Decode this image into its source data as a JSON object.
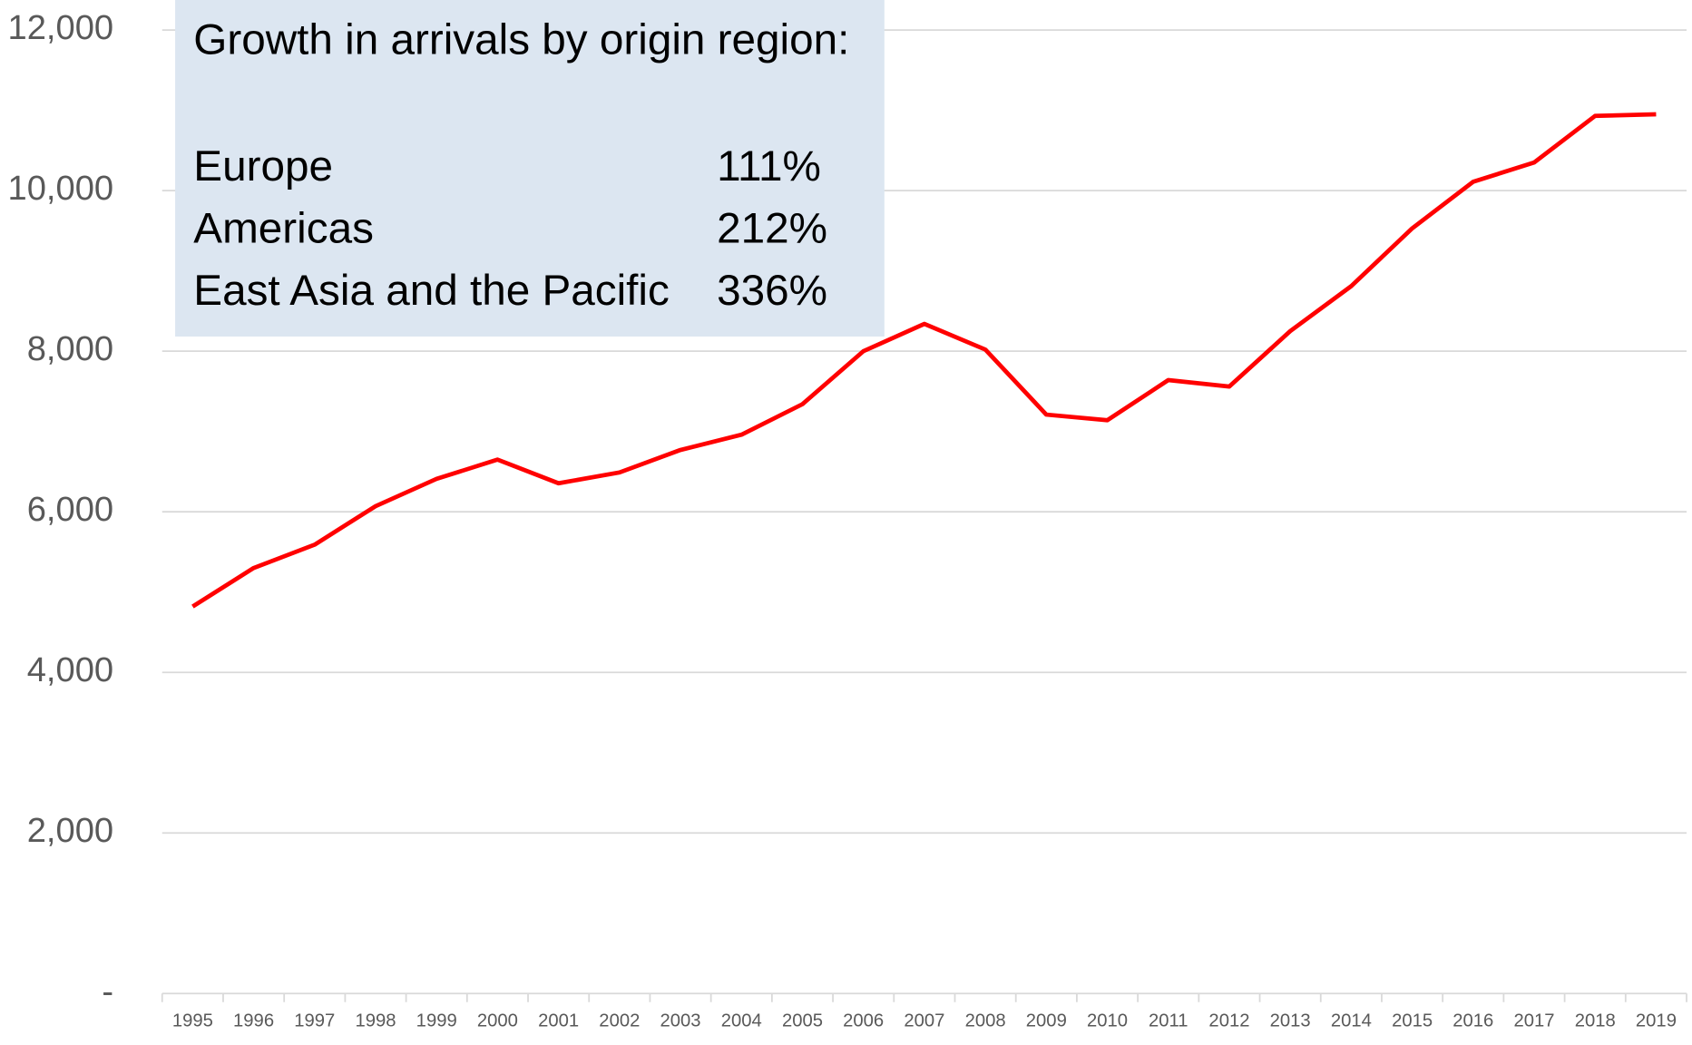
{
  "chart_data": {
    "type": "line",
    "categories": [
      "1995",
      "1996",
      "1997",
      "1998",
      "1999",
      "2000",
      "2001",
      "2002",
      "2003",
      "2004",
      "2005",
      "2006",
      "2007",
      "2008",
      "2009",
      "2010",
      "2011",
      "2012",
      "2013",
      "2014",
      "2015",
      "2016",
      "2017",
      "2018",
      "2019"
    ],
    "values": [
      4820,
      5300,
      5590,
      6070,
      6410,
      6650,
      6355,
      6490,
      6770,
      6960,
      7340,
      8000,
      8340,
      8020,
      7210,
      7140,
      7640,
      7560,
      8250,
      8810,
      9530,
      10110,
      10350,
      10930,
      10950
    ],
    "color": "#ff0000",
    "ylim": [
      0,
      12000
    ],
    "yticks": [
      {
        "value": 0,
        "label": "-"
      },
      {
        "value": 2000,
        "label": "2,000"
      },
      {
        "value": 4000,
        "label": "4,000"
      },
      {
        "value": 6000,
        "label": "6,000"
      },
      {
        "value": 8000,
        "label": "8,000"
      },
      {
        "value": 10000,
        "label": "10,000"
      },
      {
        "value": 12000,
        "label": "12,000"
      }
    ],
    "grid": true,
    "annotation": {
      "title": "Growth in arrivals by origin region:",
      "rows": [
        {
          "name": "Europe",
          "value": "111%"
        },
        {
          "name": "Americas",
          "value": "212%"
        },
        {
          "name": "East Asia and the Pacific",
          "value": "336%"
        }
      ]
    }
  }
}
